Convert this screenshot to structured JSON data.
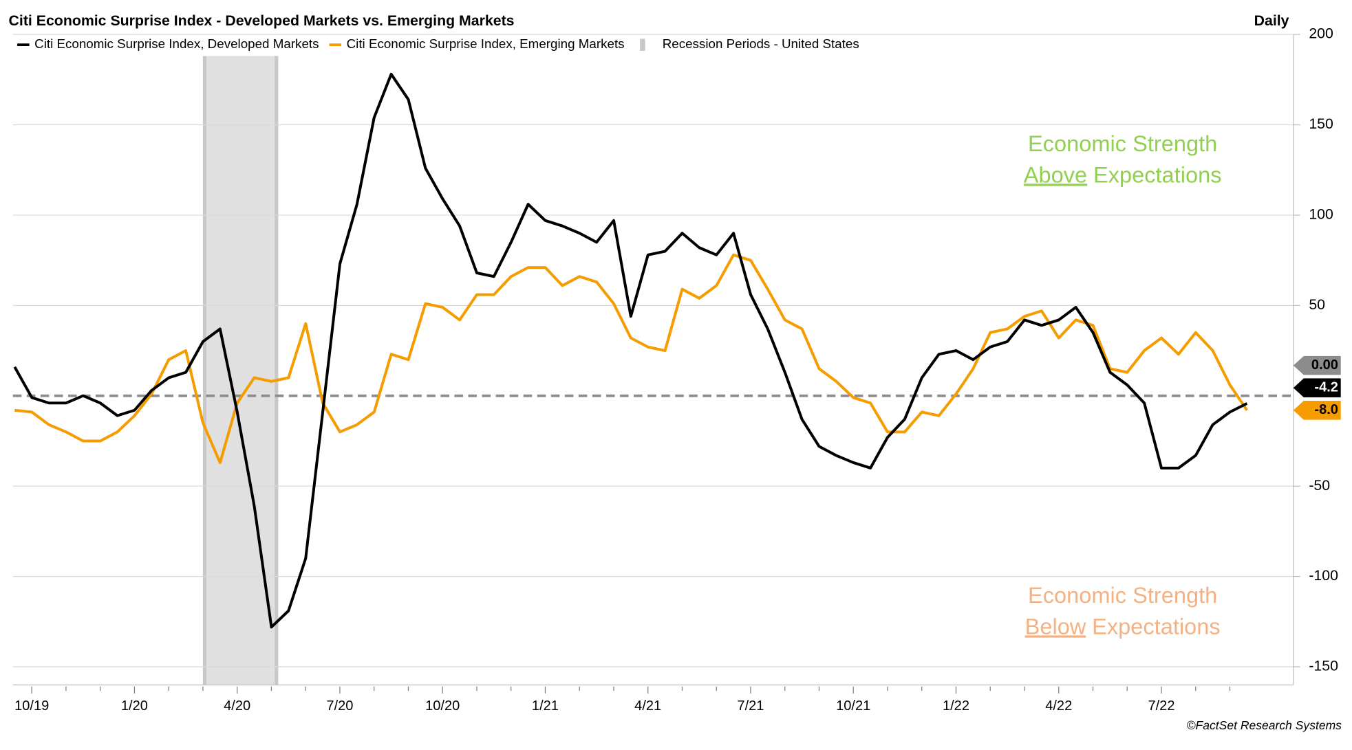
{
  "chart_data": {
    "type": "line",
    "title": "Citi Economic Surprise Index - Developed Markets vs. Emerging Markets",
    "frequency": "Daily",
    "source": "©FactSet Research Systems",
    "categories": [
      null,
      "10/19",
      null,
      null,
      null,
      null,
      null,
      "1/20",
      null,
      null,
      null,
      null,
      null,
      "4/20",
      null,
      null,
      null,
      null,
      null,
      "7/20",
      null,
      null,
      null,
      null,
      null,
      "10/20",
      null,
      null,
      null,
      null,
      null,
      "1/21",
      null,
      null,
      null,
      null,
      null,
      "4/21",
      null,
      null,
      null,
      null,
      null,
      "7/21",
      null,
      null,
      null,
      null,
      null,
      "10/21",
      null,
      null,
      null,
      null,
      null,
      "1/22",
      null,
      null,
      null,
      null,
      null,
      "4/22",
      null,
      null,
      null,
      null,
      null,
      "7/22",
      null,
      null,
      null,
      null,
      null
    ],
    "series": [
      {
        "name": "Citi Economic Surprise Index, Developed Markets",
        "color": "#000000",
        "last_label": "-4.2",
        "values": [
          16,
          -1,
          -4,
          -4,
          0,
          -4,
          -11,
          -8,
          3,
          10,
          13,
          30,
          37,
          -9,
          -61,
          -128,
          -119,
          -90,
          -9,
          73,
          106,
          154,
          178,
          164,
          126,
          109,
          94,
          68,
          66,
          85,
          106,
          97,
          94,
          90,
          85,
          97,
          44,
          78,
          80,
          90,
          82,
          78,
          90,
          56,
          37,
          13,
          -13,
          -28,
          -33,
          -37,
          -40,
          -23,
          -13,
          10,
          23,
          25,
          20,
          27,
          30,
          42,
          39,
          42,
          49,
          35,
          13,
          6,
          -4,
          -40,
          -40,
          -33,
          -16,
          -9,
          -4.2
        ]
      },
      {
        "name": "Citi Economic Surprise Index, Emerging Markets",
        "color": "#f59c00",
        "last_label": "-8.0",
        "values": [
          -8,
          -9,
          -16,
          -20,
          -25,
          -25,
          -20,
          -11,
          1,
          20,
          25,
          -15,
          -37,
          -4,
          10,
          8,
          10,
          40,
          -4,
          -20,
          -16,
          -9,
          23,
          20,
          51,
          49,
          42,
          56,
          56,
          66,
          71,
          71,
          61,
          66,
          63,
          51,
          32,
          27,
          25,
          59,
          54,
          61,
          78,
          75,
          59,
          42,
          37,
          15,
          8,
          -1,
          -4,
          -20,
          -20,
          -9,
          -11,
          1,
          15,
          35,
          37,
          44,
          47,
          32,
          42,
          39,
          15,
          13,
          25,
          32,
          23,
          35,
          25,
          6,
          -8
        ]
      }
    ],
    "recession": {
      "name": "Recession Periods - United States",
      "color": "#e0e0e0",
      "edge_color": "#c8c8c8",
      "start": 11.1,
      "end": 15.3
    },
    "reference_line": {
      "value": 0,
      "label": "0.00",
      "color": "#8c8c8c"
    },
    "ylim": [
      -160,
      200
    ],
    "yticks": [
      -150,
      -100,
      -50,
      50,
      100,
      150,
      200
    ],
    "grid": true,
    "annotations": [
      {
        "first": "Economic Strength",
        "underlined": "Above",
        "rest": "Expectations",
        "color": "#92d050",
        "value": 130
      },
      {
        "first": "Economic Strength",
        "underlined": "Below",
        "rest": "Expectations",
        "color": "#f4b183",
        "value": -120
      }
    ]
  }
}
